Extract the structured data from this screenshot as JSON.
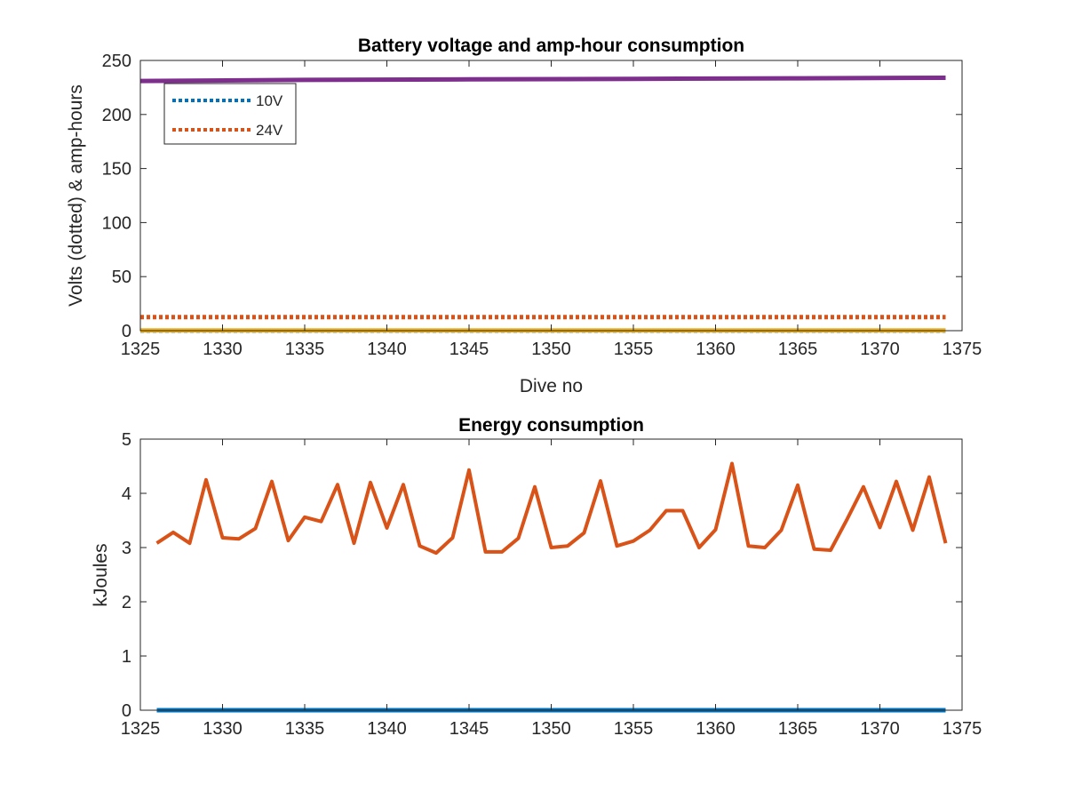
{
  "chart_data": [
    {
      "type": "line",
      "title": "Battery voltage and amp-hour consumption",
      "xlabel": "Dive no",
      "ylabel": "Volts (dotted) & amp-hours",
      "xlim": [
        1325,
        1375
      ],
      "ylim": [
        0,
        250
      ],
      "xticks": [
        1325,
        1330,
        1335,
        1340,
        1345,
        1350,
        1355,
        1360,
        1365,
        1370,
        1375
      ],
      "yticks": [
        0,
        50,
        100,
        150,
        200,
        250
      ],
      "grid": false,
      "legend_position": "top-left",
      "series": [
        {
          "name": "10V",
          "style": "dotted",
          "color": "#0072BD",
          "x": [
            1325,
            1374
          ],
          "y": [
            0,
            0
          ]
        },
        {
          "name": "24V",
          "style": "dotted",
          "color": "#D95319",
          "x": [
            1325,
            1374
          ],
          "y": [
            12.5,
            12.5
          ]
        },
        {
          "style": "solid",
          "color": "#EDB120",
          "x": [
            1325,
            1374
          ],
          "y": [
            0.2,
            0.2
          ]
        },
        {
          "style": "solid",
          "color": "#7E2F8E",
          "x": [
            1325,
            1335,
            1345,
            1355,
            1365,
            1374
          ],
          "y": [
            231,
            232,
            232.5,
            233,
            233.5,
            234
          ]
        }
      ]
    },
    {
      "type": "line",
      "title": "Energy consumption",
      "xlabel": "",
      "ylabel": "kJoules",
      "xlim": [
        1325,
        1375
      ],
      "ylim": [
        0,
        5
      ],
      "xticks": [
        1325,
        1330,
        1335,
        1340,
        1345,
        1350,
        1355,
        1360,
        1365,
        1370,
        1375
      ],
      "yticks": [
        0,
        1,
        2,
        3,
        4,
        5
      ],
      "grid": false,
      "series": [
        {
          "style": "solid",
          "color": "#0072BD",
          "x": [
            1326,
            1374
          ],
          "y": [
            0,
            0
          ]
        },
        {
          "style": "solid",
          "color": "#D95319",
          "x": [
            1326,
            1327,
            1328,
            1329,
            1330,
            1331,
            1332,
            1333,
            1334,
            1335,
            1336,
            1337,
            1338,
            1339,
            1340,
            1341,
            1342,
            1343,
            1344,
            1345,
            1346,
            1347,
            1348,
            1349,
            1350,
            1351,
            1352,
            1353,
            1354,
            1355,
            1356,
            1357,
            1358,
            1359,
            1360,
            1361,
            1362,
            1363,
            1364,
            1365,
            1366,
            1367,
            1368,
            1369,
            1370,
            1371,
            1372,
            1373,
            1374
          ],
          "y": [
            3.08,
            3.28,
            3.08,
            4.25,
            3.18,
            3.16,
            3.35,
            4.22,
            3.13,
            3.56,
            3.48,
            4.16,
            3.08,
            4.2,
            3.36,
            4.16,
            3.03,
            2.9,
            3.18,
            4.43,
            2.92,
            2.92,
            3.17,
            4.12,
            3.0,
            3.03,
            3.27,
            4.23,
            3.03,
            3.12,
            3.32,
            3.68,
            3.68,
            3.0,
            3.33,
            4.55,
            3.03,
            3.0,
            3.32,
            4.15,
            2.97,
            2.95,
            3.52,
            4.12,
            3.37,
            4.22,
            3.32,
            4.3,
            3.08
          ]
        }
      ]
    }
  ]
}
